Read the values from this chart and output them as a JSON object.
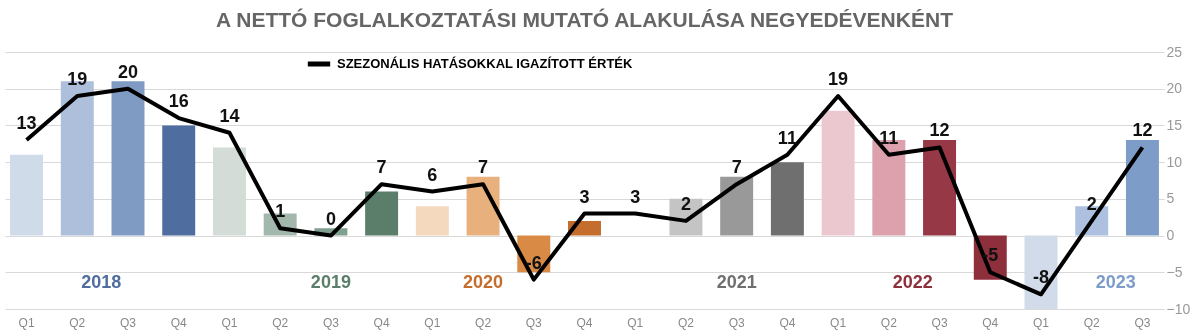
{
  "chart_data": {
    "type": "bar",
    "title": "A NETTÓ FOGLALKOZTATÁSI MUTATÓ ALAKULÁSA NEGYEDÉVENKÉNT",
    "categories": [
      "Q1",
      "Q2",
      "Q3",
      "Q4",
      "Q1",
      "Q2",
      "Q3",
      "Q4",
      "Q1",
      "Q2",
      "Q3",
      "Q4",
      "Q1",
      "Q2",
      "Q3",
      "Q4",
      "Q1",
      "Q2",
      "Q3",
      "Q4",
      "Q1",
      "Q2",
      "Q3"
    ],
    "series": [
      {
        "values": [
          11,
          21,
          21,
          15,
          12,
          3,
          1,
          6,
          4,
          8,
          -5,
          2,
          0,
          5,
          8,
          10,
          17,
          13,
          13,
          -6,
          -10,
          4,
          13
        ],
        "colors": [
          "#d0dbe9",
          "#aebfdb",
          "#7f9ac3",
          "#4f6d9f",
          "#d3dcd6",
          "#a3b8ad",
          "#7fa08f",
          "#5b7e6b",
          "#f5d9bf",
          "#e8b07d",
          "#d98a45",
          "#c56d2c",
          "#dddddd",
          "#c4c4c4",
          "#999999",
          "#6f6f6f",
          "#ebc8cf",
          "#dca1ad",
          "#963845",
          "#8e2f3c",
          "#d1dbe9",
          "#adc0df",
          "#7d9cc8"
        ]
      },
      {
        "type": "line",
        "name": "SZEZONÁLIS HATÁSOKKAL IGAZÍTOTT ÉRTÉK",
        "color": "#000000",
        "values": [
          13,
          19,
          20,
          16,
          14,
          1,
          0,
          7,
          6,
          7,
          -6,
          3,
          3,
          2,
          7,
          11,
          19,
          11,
          12,
          -5,
          -8,
          2,
          12
        ],
        "value_labels": [
          "13",
          "19",
          "20",
          "16",
          "14",
          "1",
          "0",
          "7",
          "6",
          "7",
          "-6",
          "3",
          "3",
          "2",
          "7",
          "11",
          "19",
          "11",
          "12",
          "-5",
          "-8",
          "2",
          "12"
        ]
      }
    ],
    "annotations": [
      "2018",
      "2019",
      "2020",
      "2021",
      "2022",
      "2023"
    ],
    "ylim": [
      -10,
      25
    ],
    "yticks": [
      -10,
      -5,
      0,
      5,
      10,
      15,
      20,
      25
    ],
    "grid": "y",
    "legend": "top",
    "marker": "none",
    "line_style": "solid"
  }
}
